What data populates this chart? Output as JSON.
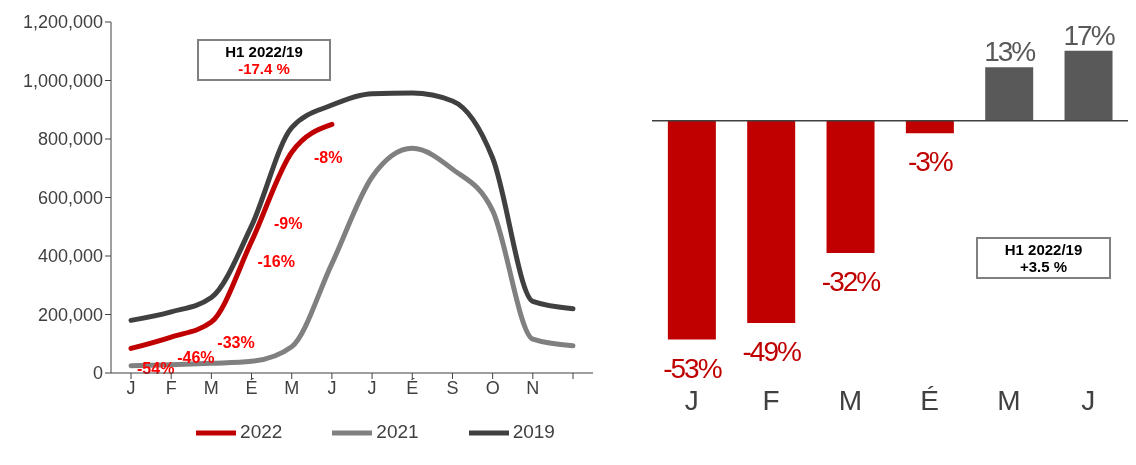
{
  "chart_data": [
    {
      "type": "line",
      "categories": [
        "J",
        "F",
        "M",
        "É",
        "M",
        "J",
        "J",
        "É",
        "S",
        "O",
        "N",
        null
      ],
      "ylim": [
        0,
        1200000
      ],
      "yticks": [
        {
          "value": 0,
          "label": "0"
        },
        {
          "value": 200000,
          "label": "200,000"
        },
        {
          "value": 400000,
          "label": "400,000"
        },
        {
          "value": 600000,
          "label": "600,000"
        },
        {
          "value": 800000,
          "label": "800,000"
        },
        {
          "value": 1000000,
          "label": "1,000,000"
        },
        {
          "value": 1200000,
          "label": "1,200,000"
        }
      ],
      "legend": "bottom",
      "marker": "none",
      "line_style": "solid",
      "annotations": [
        "H1 2022/19\n-17.4 %",
        {
          "text": "-54%",
          "x": "J",
          "y": 84000
        },
        {
          "text": "-46%",
          "x": "F",
          "y": 123000
        },
        {
          "text": "-33%",
          "x": "M",
          "y": 174000
        },
        {
          "text": "-16%",
          "x": "É",
          "y": 450000
        },
        "-9%",
        "-8%"
      ],
      "series": [
        {
          "name": "2022",
          "color": "#c00000",
          "values": [
            84000,
            123000,
            174000,
            450000,
            755000,
            850000,
            null,
            null,
            null,
            null,
            null,
            null
          ]
        },
        {
          "name": "2021",
          "color": "#808080",
          "values": [
            25000,
            28000,
            33000,
            40000,
            90000,
            374000,
            670000,
            768000,
            697000,
            555000,
            116000,
            93000
          ]
        },
        {
          "name": "2019",
          "color": "#404040",
          "values": [
            180000,
            209000,
            258000,
            503000,
            839000,
            916000,
            955000,
            957000,
            930000,
            735000,
            245000,
            220000
          ]
        }
      ]
    },
    {
      "type": "bar",
      "categories": [
        "J",
        "F",
        "M",
        "É",
        "M",
        "J"
      ],
      "values": [
        -53,
        -49,
        -32,
        -3,
        13,
        17
      ],
      "colors": [
        "#c00000",
        "#c00000",
        "#c00000",
        "#c00000",
        "#595959",
        "#595959"
      ],
      "value_labels": [
        "-53%",
        "-49%",
        "-32%",
        "-3%",
        "13%",
        "17%"
      ],
      "annotations": [
        "H1 2022/19\n+3.5 %"
      ]
    }
  ]
}
